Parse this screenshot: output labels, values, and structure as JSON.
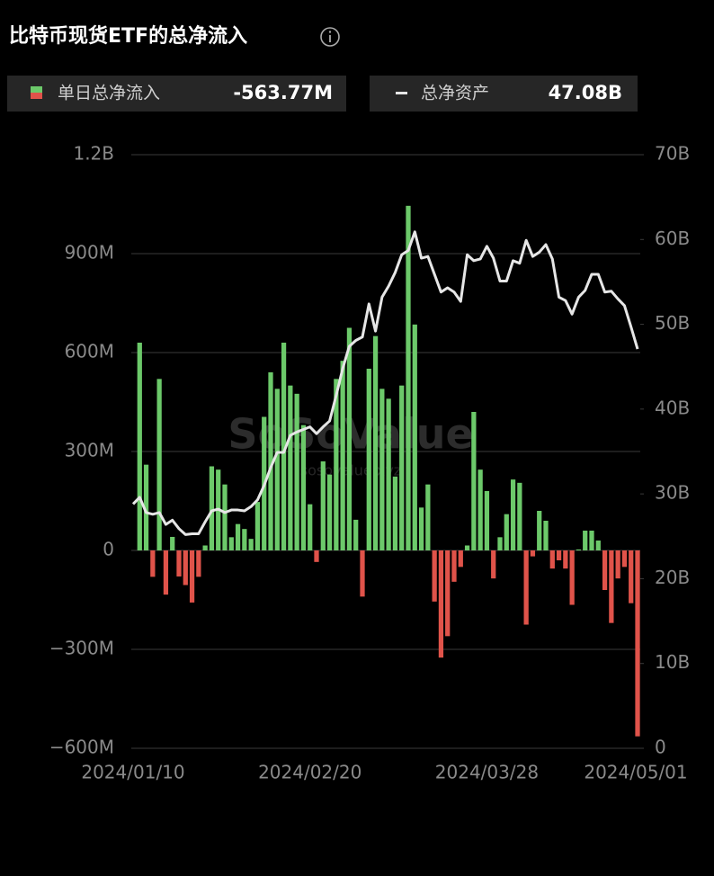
{
  "chart_data": {
    "type": "bar_line",
    "title": "比特币现货ETF的总净流入",
    "watermark": "SoSoValue",
    "watermark_sub": "sosovalue.xyz",
    "categories": [
      "2024/01/10",
      "2024/01/11",
      "2024/01/12",
      "2024/01/16",
      "2024/01/17",
      "2024/01/18",
      "2024/01/19",
      "2024/01/22",
      "2024/01/23",
      "2024/01/24",
      "2024/01/25",
      "2024/01/26",
      "2024/01/29",
      "2024/01/30",
      "2024/01/31",
      "2024/02/01",
      "2024/02/02",
      "2024/02/05",
      "2024/02/06",
      "2024/02/07",
      "2024/02/08",
      "2024/02/09",
      "2024/02/12",
      "2024/02/13",
      "2024/02/14",
      "2024/02/15",
      "2024/02/16",
      "2024/02/20",
      "2024/02/21",
      "2024/02/22",
      "2024/02/23",
      "2024/02/26",
      "2024/02/27",
      "2024/02/28",
      "2024/02/29",
      "2024/03/01",
      "2024/03/04",
      "2024/03/05",
      "2024/03/06",
      "2024/03/07",
      "2024/03/08",
      "2024/03/11",
      "2024/03/12",
      "2024/03/13",
      "2024/03/14",
      "2024/03/15",
      "2024/03/18",
      "2024/03/19",
      "2024/03/20",
      "2024/03/21",
      "2024/03/22",
      "2024/03/25",
      "2024/03/26",
      "2024/03/27",
      "2024/03/28",
      "2024/04/01",
      "2024/04/02",
      "2024/04/03",
      "2024/04/04",
      "2024/04/05",
      "2024/04/08",
      "2024/04/09",
      "2024/04/10",
      "2024/04/11",
      "2024/04/12",
      "2024/04/15",
      "2024/04/16",
      "2024/04/17",
      "2024/04/18",
      "2024/04/19",
      "2024/04/22",
      "2024/04/23",
      "2024/04/24",
      "2024/04/25",
      "2024/04/26",
      "2024/04/29",
      "2024/04/30",
      "2024/05/01"
    ],
    "xticks": [
      "2024/01/10",
      "2024/02/20",
      "2024/03/28",
      "2024/05/01"
    ],
    "series": [
      {
        "name": "单日总净流入",
        "type": "bar",
        "color": "#6cc96a",
        "negative_color": "#e0534a",
        "current": {
          "value": -563.77,
          "label": "-563.77M"
        },
        "values": [
          null,
          630,
          260,
          -80,
          520,
          -134,
          41,
          -79,
          -105,
          -158,
          -80,
          15,
          255,
          245,
          200,
          40,
          80,
          65,
          35,
          147,
          405,
          540,
          490,
          630,
          500,
          475,
          380,
          140,
          -35,
          270,
          230,
          520,
          575,
          675,
          93,
          -140,
          551,
          650,
          490,
          460,
          224,
          500,
          1045,
          685,
          130,
          200,
          -155,
          -325,
          -260,
          -95,
          -50,
          15,
          420,
          245,
          180,
          -85,
          40,
          110,
          215,
          205,
          -225,
          -18,
          120,
          90,
          -55,
          -30,
          -55,
          -165,
          3,
          60,
          60,
          30,
          -120,
          -220,
          -85,
          -50,
          -160,
          -563.77
        ]
      },
      {
        "name": "总净资产",
        "type": "line",
        "axis": "y2",
        "color": "#e6e6e6",
        "current": {
          "value": 47.08,
          "label": "47.08B"
        },
        "values": [
          28.8,
          29.6,
          27.8,
          27.6,
          27.8,
          26.4,
          26.9,
          25.9,
          25.2,
          25.3,
          25.3,
          26.7,
          28.0,
          28.2,
          27.8,
          28.1,
          28.1,
          28.0,
          28.5,
          29.3,
          31.0,
          33.1,
          34.9,
          34.9,
          36.9,
          37.3,
          37.6,
          37.9,
          37.1,
          37.9,
          38.6,
          41.6,
          44.8,
          47.4,
          48.1,
          48.5,
          52.4,
          49.2,
          53.2,
          54.5,
          56.1,
          58.2,
          58.7,
          60.9,
          57.8,
          58.0,
          55.9,
          53.8,
          54.3,
          53.8,
          52.7,
          58.2,
          57.5,
          57.7,
          59.2,
          57.8,
          55.1,
          55.1,
          57.5,
          57.2,
          59.9,
          58.0,
          58.5,
          59.4,
          57.7,
          53.2,
          52.8,
          51.2,
          53.2,
          54.0,
          55.9,
          55.9,
          53.8,
          53.9,
          53.0,
          52.2,
          49.7,
          47.08
        ]
      }
    ],
    "ylim": [
      -600,
      1200
    ],
    "yticks": [
      {
        "value": 1200,
        "label": "1.2B"
      },
      {
        "value": 900,
        "label": "900M"
      },
      {
        "value": 600,
        "label": "600M"
      },
      {
        "value": 300,
        "label": "300M"
      },
      0,
      {
        "value": -300,
        "label": "−300M"
      },
      {
        "value": -600,
        "label": "−600M"
      }
    ],
    "y2lim": [
      0,
      70
    ],
    "y2ticks": [
      {
        "value": 70,
        "label": "70B"
      },
      {
        "value": 60,
        "label": "60B"
      },
      {
        "value": 50,
        "label": "50B"
      },
      {
        "value": 40,
        "label": "40B"
      },
      {
        "value": 30,
        "label": "30B"
      },
      {
        "value": 20,
        "label": "20B"
      },
      {
        "value": 10,
        "label": "10B"
      },
      0
    ],
    "grid": true
  }
}
